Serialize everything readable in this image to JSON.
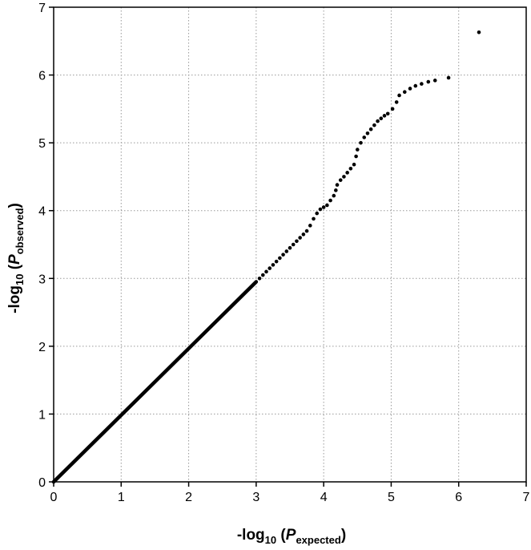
{
  "chart_data": {
    "type": "scatter",
    "title": "",
    "xlabel": {
      "prefix": "-log",
      "subscript": "10",
      "open": " (",
      "var": "P",
      "var_subscript": "expected",
      "close": ")"
    },
    "ylabel": {
      "prefix": "-log",
      "subscript": "10",
      "open": " (",
      "var": "P",
      "var_subscript": "observed",
      "close": ")"
    },
    "xlim": [
      0,
      7
    ],
    "ylim": [
      0,
      7
    ],
    "xticks": [
      "0",
      "1",
      "2",
      "3",
      "4",
      "5",
      "6",
      "7"
    ],
    "yticks": [
      "0",
      "1",
      "2",
      "3",
      "4",
      "5",
      "6",
      "7"
    ],
    "grid": true,
    "legend": "none",
    "marker_color": "#000000",
    "dense_line": {
      "x": [
        0,
        3.0
      ],
      "y": [
        0,
        2.95
      ]
    },
    "points": [
      {
        "x": 3.05,
        "y": 3.0
      },
      {
        "x": 3.1,
        "y": 3.05
      },
      {
        "x": 3.15,
        "y": 3.1
      },
      {
        "x": 3.2,
        "y": 3.15
      },
      {
        "x": 3.25,
        "y": 3.2
      },
      {
        "x": 3.3,
        "y": 3.25
      },
      {
        "x": 3.35,
        "y": 3.3
      },
      {
        "x": 3.4,
        "y": 3.35
      },
      {
        "x": 3.45,
        "y": 3.4
      },
      {
        "x": 3.5,
        "y": 3.45
      },
      {
        "x": 3.55,
        "y": 3.5
      },
      {
        "x": 3.6,
        "y": 3.55
      },
      {
        "x": 3.65,
        "y": 3.6
      },
      {
        "x": 3.7,
        "y": 3.65
      },
      {
        "x": 3.75,
        "y": 3.7
      },
      {
        "x": 3.8,
        "y": 3.78
      },
      {
        "x": 3.85,
        "y": 3.88
      },
      {
        "x": 3.9,
        "y": 3.96
      },
      {
        "x": 3.95,
        "y": 4.02
      },
      {
        "x": 4.0,
        "y": 4.05
      },
      {
        "x": 4.05,
        "y": 4.08
      },
      {
        "x": 4.1,
        "y": 4.15
      },
      {
        "x": 4.15,
        "y": 4.22
      },
      {
        "x": 4.18,
        "y": 4.3
      },
      {
        "x": 4.2,
        "y": 4.38
      },
      {
        "x": 4.25,
        "y": 4.45
      },
      {
        "x": 4.3,
        "y": 4.5
      },
      {
        "x": 4.35,
        "y": 4.56
      },
      {
        "x": 4.4,
        "y": 4.62
      },
      {
        "x": 4.45,
        "y": 4.68
      },
      {
        "x": 4.48,
        "y": 4.8
      },
      {
        "x": 4.5,
        "y": 4.9
      },
      {
        "x": 4.55,
        "y": 5.0
      },
      {
        "x": 4.6,
        "y": 5.08
      },
      {
        "x": 4.65,
        "y": 5.14
      },
      {
        "x": 4.7,
        "y": 5.2
      },
      {
        "x": 4.75,
        "y": 5.26
      },
      {
        "x": 4.8,
        "y": 5.32
      },
      {
        "x": 4.85,
        "y": 5.36
      },
      {
        "x": 4.9,
        "y": 5.4
      },
      {
        "x": 4.95,
        "y": 5.43
      },
      {
        "x": 5.02,
        "y": 5.5
      },
      {
        "x": 5.08,
        "y": 5.6
      },
      {
        "x": 5.12,
        "y": 5.7
      },
      {
        "x": 5.2,
        "y": 5.75
      },
      {
        "x": 5.28,
        "y": 5.8
      },
      {
        "x": 5.36,
        "y": 5.84
      },
      {
        "x": 5.45,
        "y": 5.87
      },
      {
        "x": 5.55,
        "y": 5.9
      },
      {
        "x": 5.65,
        "y": 5.92
      },
      {
        "x": 5.85,
        "y": 5.96
      },
      {
        "x": 6.3,
        "y": 6.63
      }
    ]
  }
}
